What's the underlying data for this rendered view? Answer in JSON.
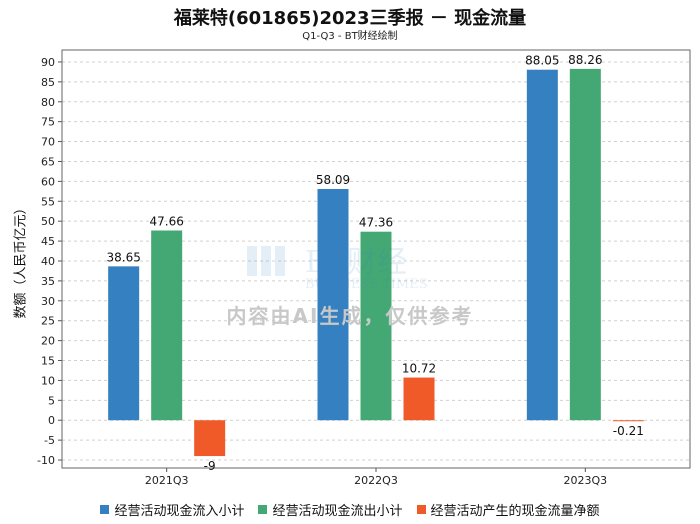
{
  "title": "福莱特(601865)2023三季报 － 现金流量",
  "subtitle": "Q1-Q3 - BT财经绘制",
  "watermark": {
    "brand": "BT财经",
    "brand_en": "BUSINESS TIMES",
    "notice": "内容由AI生成，仅供参考"
  },
  "colors": {
    "series1": "#3480c1",
    "series2": "#44a874",
    "series3": "#f05a28",
    "grid": "#d0d0d0"
  },
  "chart_data": {
    "type": "bar",
    "title": "福莱特(601865)2023三季报 － 现金流量",
    "subtitle": "Q1-Q3 - BT财经绘制",
    "xlabel": "",
    "ylabel": "数额（人民币亿元）",
    "ylim": [
      -12,
      93
    ],
    "yticks": [
      -10,
      -5,
      0,
      5,
      10,
      15,
      20,
      25,
      30,
      35,
      40,
      45,
      50,
      55,
      60,
      65,
      70,
      75,
      80,
      85,
      90
    ],
    "grid": true,
    "legend_position": "bottom",
    "categories": [
      "2021Q3",
      "2022Q3",
      "2023Q3"
    ],
    "series": [
      {
        "name": "经营活动现金流入小计",
        "values": [
          38.65,
          58.09,
          88.05
        ],
        "labels": [
          "38.65",
          "58.09",
          "88.05"
        ]
      },
      {
        "name": "经营活动现金流出小计",
        "values": [
          47.66,
          47.36,
          88.26
        ],
        "labels": [
          "47.66",
          "47.36",
          "88.26"
        ]
      },
      {
        "name": "经营活动产生的现金流量净额",
        "values": [
          -9,
          10.72,
          -0.21
        ],
        "labels": [
          "-9",
          "10.72",
          "-0.21"
        ]
      }
    ]
  }
}
